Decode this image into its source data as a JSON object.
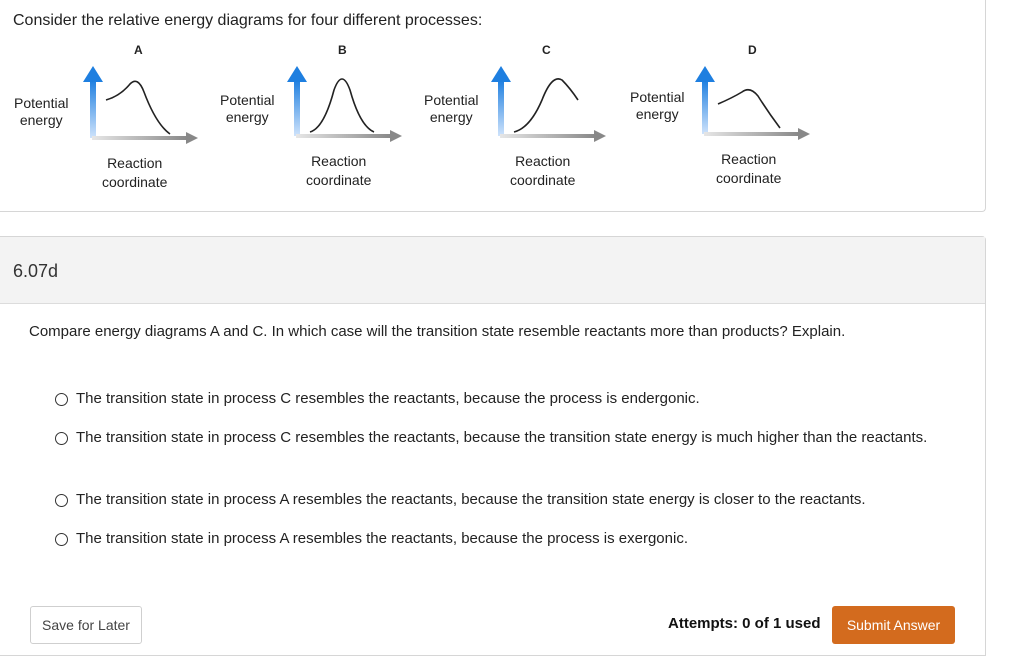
{
  "intro": {
    "text": "Consider the relative energy diagrams for four different processes:"
  },
  "diagrams": [
    {
      "letter": "A",
      "y_label_1": "Potential",
      "y_label_2": "energy",
      "x_label_1": "Reaction",
      "x_label_2": "coordinate"
    },
    {
      "letter": "B",
      "y_label_1": "Potential",
      "y_label_2": "energy",
      "x_label_1": "Reaction",
      "x_label_2": "coordinate"
    },
    {
      "letter": "C",
      "y_label_1": "Potential",
      "y_label_2": "energy",
      "x_label_1": "Reaction",
      "x_label_2": "coordinate"
    },
    {
      "letter": "D",
      "y_label_1": "Potential",
      "y_label_2": "energy",
      "x_label_1": "Reaction",
      "x_label_2": "coordinate"
    }
  ],
  "colors": {
    "axis_arrow_y": "#1e7fe0",
    "axis_arrow_x": "#888888",
    "curve": "#222222",
    "submit_bg": "#d36b1e"
  },
  "question": {
    "number": "6.07d",
    "text": "Compare energy diagrams A and C. In which case will the transition state resemble reactants more than products? Explain.",
    "choices": [
      "The transition state in process C resembles the reactants, because the process is endergonic.",
      "The transition state in process C resembles the reactants, because the transition state energy is much higher than the reactants.",
      "The transition state in process A resembles the reactants, because the transition state energy is closer to the reactants.",
      "The transition state in process A resembles the reactants, because the process is exergonic."
    ]
  },
  "footer": {
    "save_label": "Save for Later",
    "attempts": "Attempts: 0 of 1 used",
    "submit_label": "Submit Answer"
  }
}
